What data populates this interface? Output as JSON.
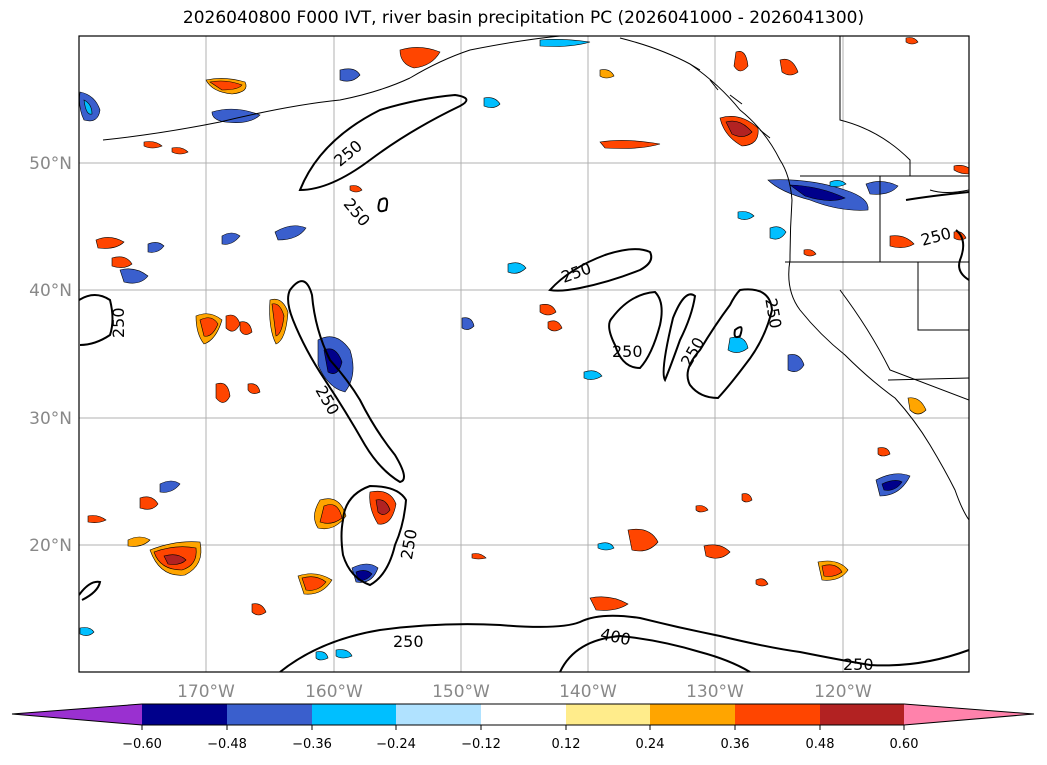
{
  "title": "2026040800 F000 IVT, river basin precipitation PC (2026041000 - 2026041300)",
  "map": {
    "lon_labels": [
      "170°W",
      "160°W",
      "150°W",
      "140°W",
      "130°W",
      "120°W"
    ],
    "lat_labels": [
      "50°N",
      "40°N",
      "30°N",
      "20°N"
    ],
    "ivt_contour_labels": [
      "250",
      "250",
      "250",
      "250",
      "250",
      "250",
      "250",
      "250",
      "250",
      "250",
      "400",
      "250",
      "250"
    ]
  },
  "colorbar": {
    "tick_labels": [
      "−0.60",
      "−0.48",
      "−0.36",
      "−0.24",
      "−0.12",
      "0.12",
      "0.24",
      "0.36",
      "0.48",
      "0.60"
    ],
    "colors": [
      "#9a30d0",
      "#00008b",
      "#3a5fcd",
      "#00bfff",
      "#b0e2ff",
      "#ffffff",
      "#ffec8b",
      "#ffa500",
      "#ff4500",
      "#b22222",
      "#ff82ab"
    ]
  }
}
